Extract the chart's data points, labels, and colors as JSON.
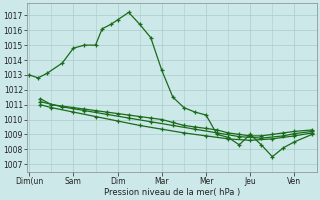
{
  "bg_color": "#cce8e8",
  "grid_color": "#aacccc",
  "line_color": "#1a6b1a",
  "xlabel": "Pression niveau de la mer( hPa )",
  "yticks": [
    1007,
    1008,
    1009,
    1010,
    1011,
    1012,
    1013,
    1014,
    1015,
    1016,
    1017
  ],
  "ylim_lo": 1006.5,
  "ylim_hi": 1017.8,
  "x_labels": [
    "Dim(un",
    "Sam",
    "Dim",
    "Mar",
    "Mer",
    "Jeu",
    "Ven"
  ],
  "x_tick_pos": [
    0,
    2,
    4,
    6,
    8,
    10,
    12
  ],
  "xlim_lo": -0.1,
  "xlim_hi": 13.0,
  "s0_x": [
    0.0,
    0.4,
    0.8,
    1.5,
    2.0,
    2.5,
    3.0,
    3.3,
    3.7,
    4.0,
    4.5,
    5.0,
    5.5,
    6.0,
    6.5,
    7.0,
    7.5,
    8.0,
    8.5,
    9.0,
    9.5,
    10.0,
    10.5,
    11.0,
    11.5,
    12.0,
    12.8
  ],
  "s0_y": [
    1013.0,
    1012.8,
    1013.1,
    1013.8,
    1014.8,
    1015.0,
    1015.0,
    1016.1,
    1016.4,
    1016.7,
    1017.2,
    1016.4,
    1015.5,
    1013.3,
    1011.5,
    1010.8,
    1010.5,
    1010.3,
    1009.0,
    1008.8,
    1008.3,
    1009.0,
    1008.3,
    1007.5,
    1008.1,
    1008.5,
    1009.0
  ],
  "s1_x": [
    0.5,
    1.0,
    1.5,
    2.0,
    2.5,
    3.0,
    3.5,
    4.0,
    4.5,
    5.0,
    5.5,
    6.0,
    6.5,
    7.0,
    7.5,
    8.0,
    8.5,
    9.0,
    9.5,
    10.0,
    10.5,
    11.0,
    11.5,
    12.0,
    12.8
  ],
  "s1_y": [
    1011.4,
    1011.0,
    1010.9,
    1010.8,
    1010.7,
    1010.6,
    1010.5,
    1010.4,
    1010.3,
    1010.2,
    1010.1,
    1010.0,
    1009.8,
    1009.6,
    1009.5,
    1009.4,
    1009.3,
    1009.1,
    1009.0,
    1008.9,
    1008.9,
    1009.0,
    1009.1,
    1009.2,
    1009.3
  ],
  "s2_x": [
    0.5,
    1.0,
    2.0,
    3.0,
    4.0,
    5.0,
    6.0,
    7.0,
    8.0,
    9.0,
    10.0,
    11.0,
    12.0,
    12.8
  ],
  "s2_y": [
    1011.0,
    1010.8,
    1010.5,
    1010.2,
    1009.9,
    1009.6,
    1009.35,
    1009.1,
    1008.9,
    1008.7,
    1008.6,
    1008.7,
    1008.9,
    1009.1
  ],
  "s3_x": [
    0.5,
    1.5,
    2.5,
    3.5,
    4.5,
    5.5,
    6.5,
    7.5,
    8.5,
    9.5,
    10.5,
    11.5,
    12.0,
    12.8
  ],
  "s3_y": [
    1011.2,
    1010.85,
    1010.6,
    1010.35,
    1010.1,
    1009.85,
    1009.6,
    1009.35,
    1009.1,
    1008.85,
    1008.75,
    1008.9,
    1009.05,
    1009.2
  ]
}
